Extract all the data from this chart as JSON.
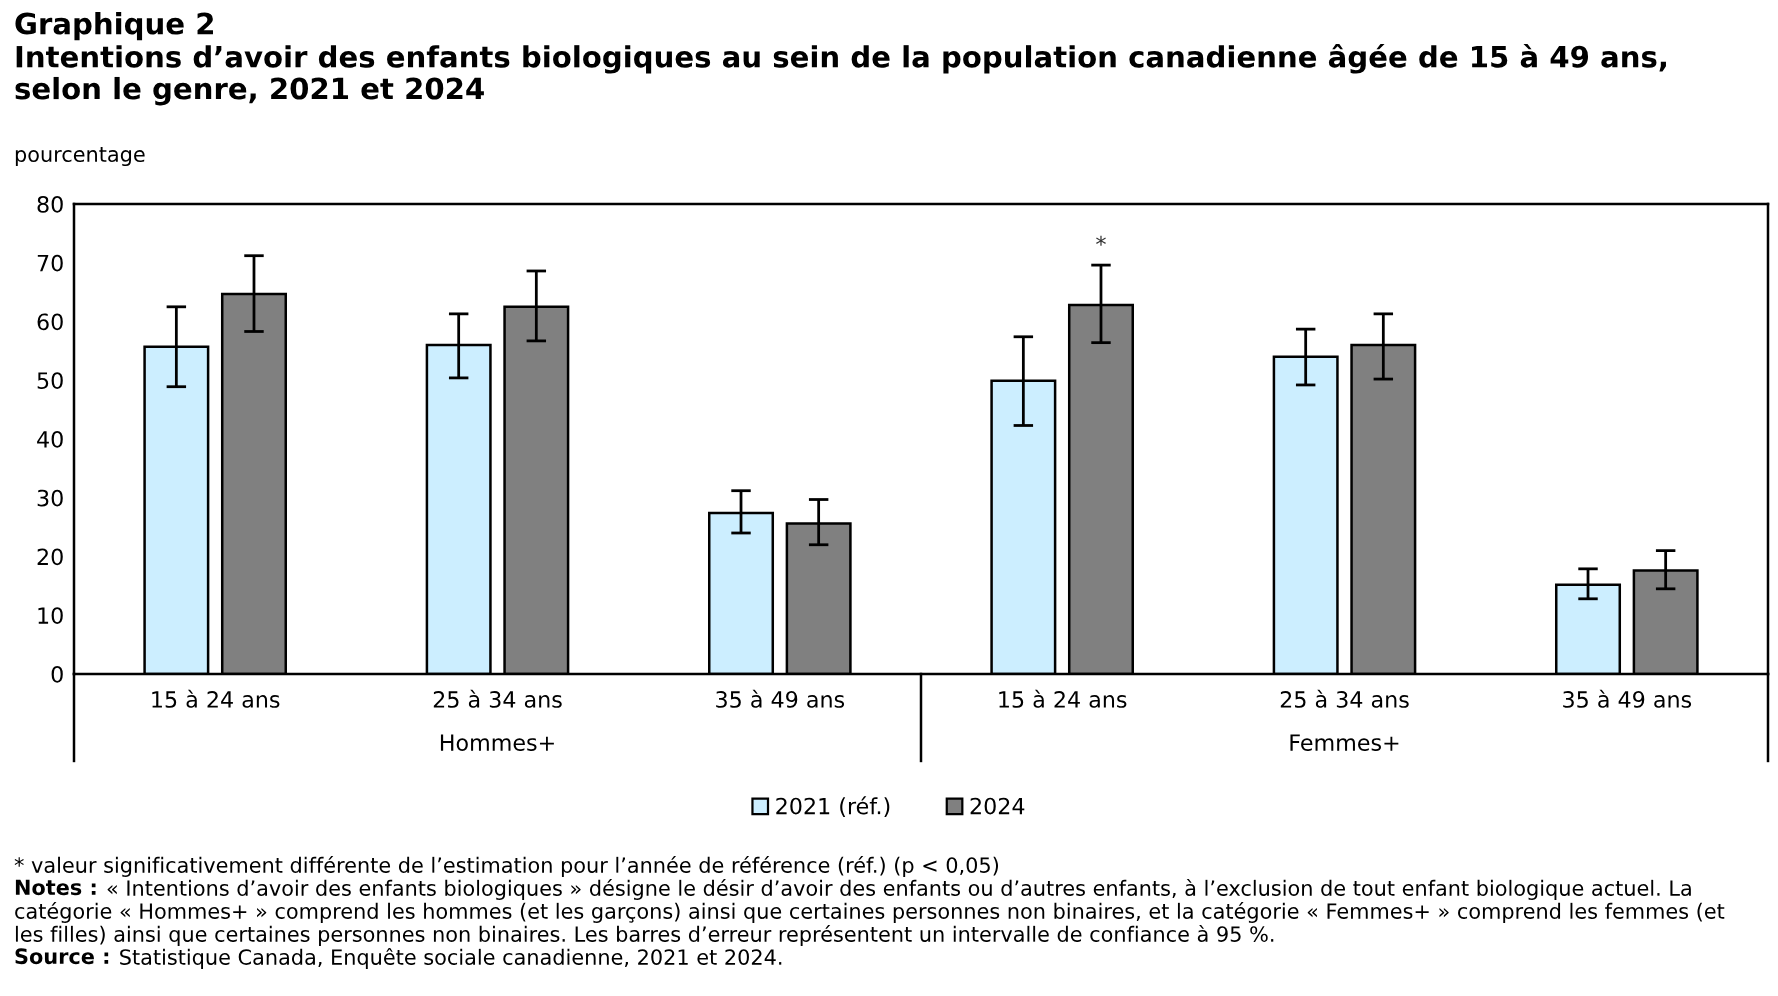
{
  "chart_data": {
    "type": "bar",
    "title": "Graphique 2",
    "subtitle": "Intentions d’avoir des enfants biologiques au sein de la population canadienne âgée de 15 à 49 ans,\nselon le genre, 2021 et 2024",
    "ylabel": "pourcentage",
    "categories": [
      "15 à 24 ans",
      "25 à 34 ans",
      "35 à 49 ans",
      "15 à 24 ans",
      "25 à 34 ans",
      "35 à 49 ans"
    ],
    "series": [
      {
        "name": "2021 (réf.)",
        "color": "#cceeff",
        "values": [
          55.7,
          56.0,
          27.4,
          49.9,
          54.0,
          15.2
        ],
        "errors": [
          [
            48.9,
            62.5
          ],
          [
            50.4,
            61.3
          ],
          [
            24.0,
            31.2
          ],
          [
            42.3,
            57.4
          ],
          [
            49.2,
            58.7
          ],
          [
            12.8,
            17.9
          ]
        ]
      },
      {
        "name": "2024",
        "color": "#808080",
        "values": [
          64.7,
          62.5,
          25.6,
          62.8,
          56.0,
          17.6
        ],
        "errors": [
          [
            58.3,
            71.2
          ],
          [
            56.7,
            68.6
          ],
          [
            22.0,
            29.7
          ],
          [
            56.4,
            69.6
          ],
          [
            50.2,
            61.3
          ],
          [
            14.5,
            21.0
          ]
        ],
        "value_labels": [
          null,
          null,
          null,
          "*",
          null,
          null
        ]
      }
    ],
    "ylim": [
      0,
      80
    ],
    "yticks": [
      0,
      10,
      20,
      30,
      40,
      50,
      60,
      70,
      80
    ],
    "grid": false,
    "legend": "bottom",
    "annotations": [
      "Hommes+",
      "Femmes+",
      "* valeur significativement différente de l’estimation pour l’année de référence (réf.) (p < 0,05)",
      "Notes : « Intentions d’avoir des enfants biologiques » désigne le désir d’avoir des enfants ou d’autres enfants, à l’exclusion de tout enfant biologique actuel. La catégorie « Hommes+ » comprend les hommes (et les garçons) ainsi que certaines personnes non binaires, et la catégorie « Femmes+ » comprend les femmes (et les filles) ainsi que certaines personnes non binaires. Les barres d’erreur représentent un intervalle de confiance à 95 %.",
      "Source : Statistique Canada, Enquête sociale canadienne, 2021 et 2024."
    ]
  }
}
